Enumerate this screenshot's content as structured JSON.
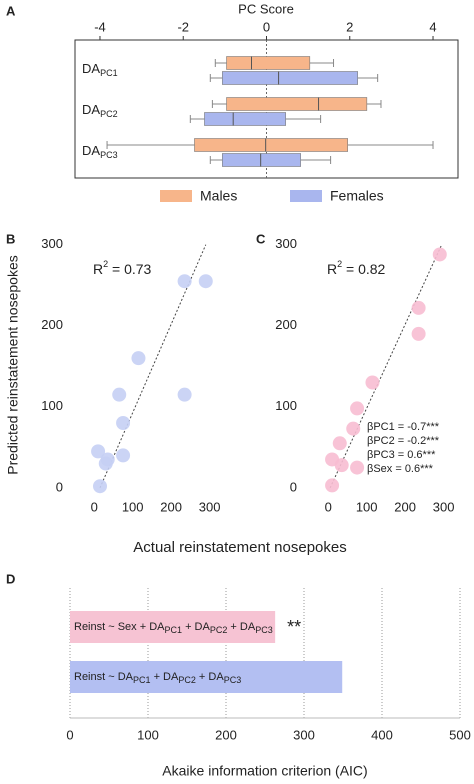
{
  "panel_labels": [
    "A",
    "B",
    "C",
    "D"
  ],
  "chart_data": [
    {
      "type": "box",
      "xlabel": "PC Score",
      "categories": [
        [
          "DA",
          "PC1"
        ],
        [
          "DA",
          "PC2"
        ],
        [
          "DA",
          "PC3"
        ]
      ],
      "series": [
        {
          "name": "Males",
          "color": "#f7b58a",
          "values": [
            [
              -1.23,
              -0.96,
              -0.36,
              1.04,
              1.61
            ],
            [
              -1.3,
              -0.96,
              1.25,
              2.41,
              2.75
            ],
            [
              -3.83,
              -1.73,
              -0.02,
              1.95,
              4.0
            ]
          ]
        },
        {
          "name": "Females",
          "color": "#a9b6ee",
          "values": [
            [
              -1.35,
              -1.06,
              0.29,
              2.19,
              2.67
            ],
            [
              -1.83,
              -1.49,
              -0.8,
              0.46,
              1.3
            ],
            [
              -1.35,
              -1.06,
              -0.14,
              0.82,
              1.54
            ]
          ]
        }
      ],
      "xlim": [
        -4.6,
        4.6
      ],
      "xticks": [
        -4,
        -2,
        0,
        2,
        4
      ]
    },
    {
      "type": "scatter",
      "ylabel": "Predicted reinstatement nosepokes",
      "xlabel": "Actual reinstatement nosepokes",
      "x": [
        235,
        290,
        115,
        65,
        235,
        75,
        10,
        35,
        30,
        75,
        15
      ],
      "values": [
        255,
        255,
        160,
        115,
        115,
        80,
        45,
        35,
        30,
        40,
        2
      ],
      "color": "#c5cff4",
      "fit_line": {
        "x": [
          15,
          290
        ],
        "y": [
          0,
          300
        ]
      },
      "annotation": [
        "R",
        "2",
        " = 0.73"
      ],
      "xlim": [
        -50,
        340
      ],
      "ylim": [
        -15,
        312
      ],
      "xticks": [
        0,
        100,
        200,
        300
      ],
      "yticks": [
        0,
        100,
        200,
        300
      ]
    },
    {
      "type": "scatter",
      "x": [
        290,
        235,
        235,
        115,
        75,
        65,
        30,
        10,
        35,
        75,
        10
      ],
      "values": [
        288,
        222,
        190,
        130,
        98,
        73,
        55,
        35,
        28,
        25,
        3
      ],
      "color": "#f7bcd2",
      "fit_line": {
        "x": [
          5,
          295
        ],
        "y": [
          0,
          300
        ]
      },
      "annotation": [
        "R",
        "2",
        " = 0.82"
      ],
      "coefficients": [
        "βPC1 = -0.7***",
        "βPC2 = -0.2***",
        "βPC3 = 0.6***",
        "βSex = 0.6***"
      ],
      "xlim": [
        -50,
        340
      ],
      "ylim": [
        -15,
        312
      ],
      "xticks": [
        0,
        100,
        200,
        300
      ],
      "yticks": [
        0,
        100,
        200,
        300
      ]
    },
    {
      "type": "hbar",
      "xlabel": "Akaike information criterion (AIC)",
      "categories": [
        [
          "Reinst ~ Sex + DA",
          "PC1",
          " + DA",
          "PC2",
          " + DA",
          "PC3"
        ],
        [
          "Reinst ~ DA",
          "PC1",
          " + DA",
          "PC2",
          " + DA",
          "PC3"
        ]
      ],
      "values": [
        263,
        349
      ],
      "colors": [
        "#f6c3d3",
        "#b3bff2"
      ],
      "annotation": "**",
      "xlim": [
        0,
        500
      ],
      "xticks": [
        0,
        100,
        200,
        300,
        400,
        500
      ],
      "grid": true
    }
  ]
}
